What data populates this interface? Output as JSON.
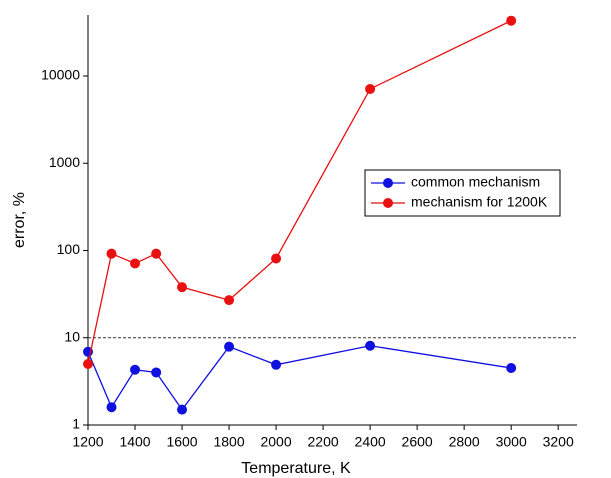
{
  "chart_data": {
    "type": "line",
    "x_label": "Temperature, K",
    "y_label": "error, %",
    "x": [
      1200,
      1300,
      1400,
      1490,
      1600,
      1800,
      2000,
      2400,
      3000
    ],
    "series": [
      {
        "name": "common mechanism",
        "color": "#1010e0",
        "values": [
          6.9,
          1.6,
          4.3,
          4.0,
          1.5,
          7.9,
          4.9,
          8.1,
          4.5
        ]
      },
      {
        "name": "mechanism for 1200K",
        "color": "#e81010",
        "values": [
          5.0,
          92,
          71,
          92,
          38,
          27,
          81,
          7100,
          43000
        ]
      }
    ],
    "xlim": [
      1200,
      3280
    ],
    "xticks": [
      1200,
      1400,
      1600,
      1800,
      2000,
      2200,
      2400,
      2600,
      2800,
      3000,
      3200
    ],
    "ylim": [
      1,
      50000
    ],
    "yticks": [
      1,
      10,
      100,
      1000,
      10000
    ],
    "y_log": true,
    "reference_line": 10,
    "legend": "right"
  }
}
